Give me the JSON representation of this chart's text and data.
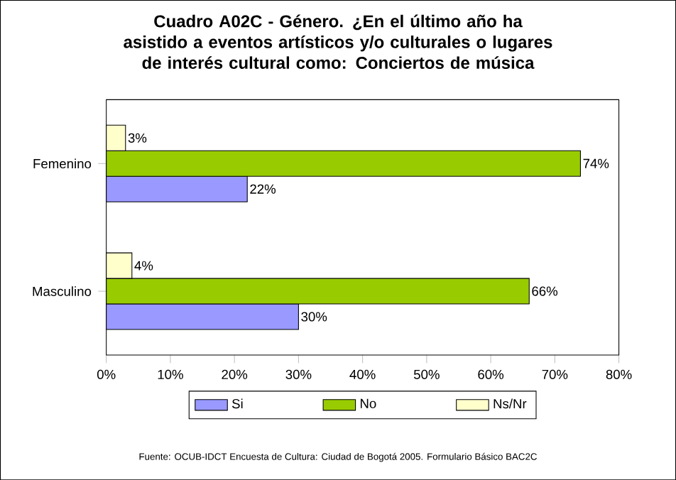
{
  "chart_data": {
    "type": "bar",
    "orientation": "horizontal",
    "title": "Cuadro A02C - Género. ¿En el último año ha asistido a eventos artísticos y/o culturales o lugares de interés cultural como: Conciertos de música",
    "categories": [
      "Femenino",
      "Masculino"
    ],
    "series": [
      {
        "name": "Si",
        "color": "#9999ff",
        "values": [
          22,
          30
        ],
        "value_labels": [
          "22%",
          "30%"
        ]
      },
      {
        "name": "No",
        "color": "#99cc00",
        "values": [
          74,
          66
        ],
        "value_labels": [
          "74%",
          "66%"
        ]
      },
      {
        "name": "Ns/Nr",
        "color": "#ffffcc",
        "values": [
          3,
          4
        ],
        "value_labels": [
          "3%",
          "4%"
        ]
      }
    ],
    "xlim": [
      0,
      80
    ],
    "xticks": [
      {
        "value": 0,
        "label": "0%"
      },
      {
        "value": 10,
        "label": "10%"
      },
      {
        "value": 20,
        "label": "20%"
      },
      {
        "value": 30,
        "label": "30%"
      },
      {
        "value": 40,
        "label": "40%"
      },
      {
        "value": 50,
        "label": "50%"
      },
      {
        "value": 60,
        "label": "60%"
      },
      {
        "value": 70,
        "label": "70%"
      },
      {
        "value": 80,
        "label": "80%"
      }
    ],
    "legend": "bottom",
    "annotations": [
      "Fuente: OCUB-IDCT Encuesta de Cultura: Ciudad de Bogotá 2005. Formulario Básico BAC2C"
    ]
  }
}
